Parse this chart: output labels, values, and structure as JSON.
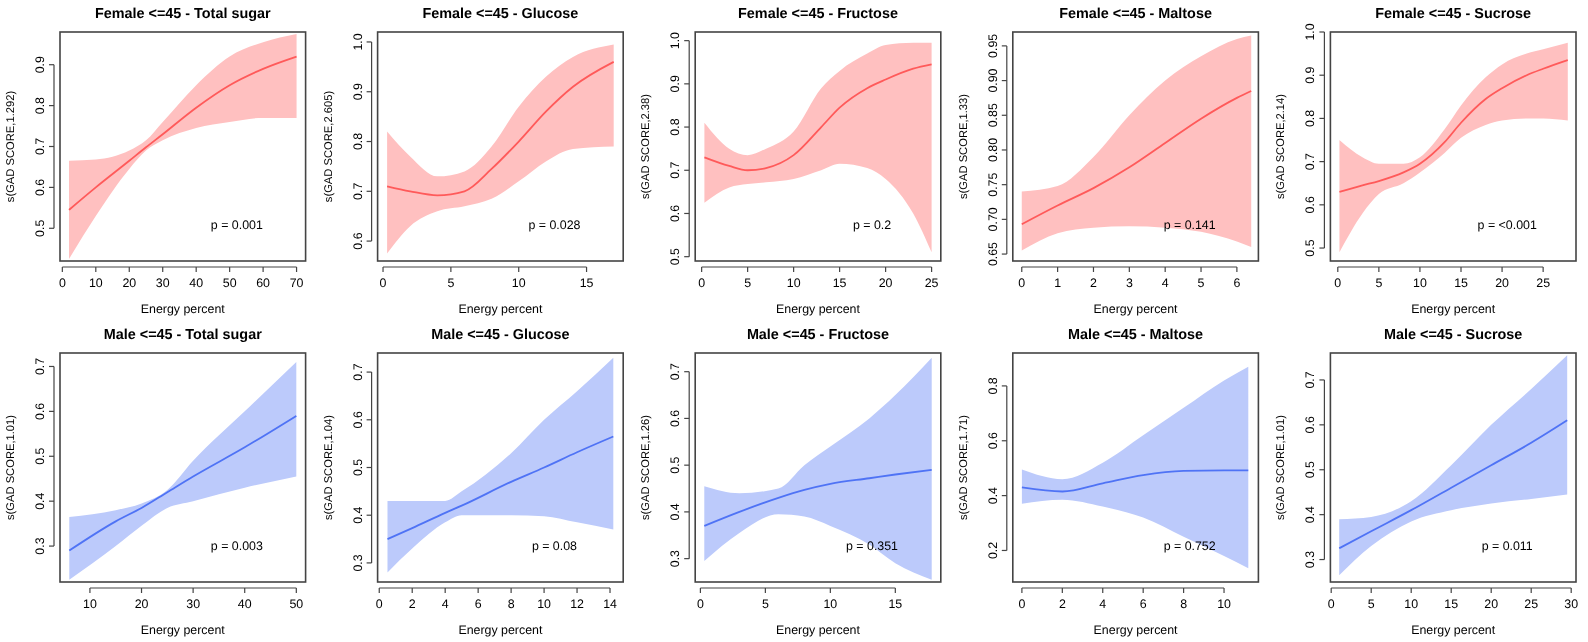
{
  "chart_data": [
    {
      "type": "line",
      "title": "Female <=45 - Total sugar",
      "xlabel": "Energy percent",
      "ylabel": "s(GAD SCORE,1.292)",
      "xlim": [
        -0.7,
        72.7
      ],
      "xticks": [
        0,
        10,
        20,
        30,
        40,
        50,
        60,
        70
      ],
      "ylim": [
        0.42,
        0.98
      ],
      "yticks": [
        0.5,
        0.6,
        0.7,
        0.8,
        0.9
      ],
      "annotations": [
        "p = 0.001"
      ],
      "series": [
        {
          "color": "#ff5a5a",
          "x": [
            2,
            10,
            20,
            25,
            30,
            40,
            50,
            60,
            70
          ],
          "values": [
            0.545,
            0.6,
            0.665,
            0.698,
            0.73,
            0.795,
            0.85,
            0.89,
            0.92
          ],
          "lower": [
            0.425,
            0.53,
            0.645,
            0.69,
            0.715,
            0.745,
            0.76,
            0.77,
            0.77
          ],
          "upper": [
            0.665,
            0.668,
            0.69,
            0.715,
            0.76,
            0.85,
            0.92,
            0.955,
            0.975
          ]
        }
      ]
    },
    {
      "type": "line",
      "title": "Female <=45 - Glucose",
      "xlabel": "Energy percent",
      "ylabel": "s(GAD SCORE,2.605)",
      "xlim": [
        -0.4,
        17.7
      ],
      "xticks": [
        0,
        5,
        10,
        15
      ],
      "ylim": [
        0.56,
        1.02
      ],
      "yticks": [
        0.6,
        0.7,
        0.8,
        0.9,
        {
          "value": 1,
          "label": "1.0"
        }
      ],
      "annotations": [
        "p = 0.028"
      ],
      "series": [
        {
          "color": "#ff5a5a",
          "x": [
            0.3,
            2,
            4,
            6,
            8,
            10,
            12,
            14,
            17
          ],
          "values": [
            0.71,
            0.7,
            0.692,
            0.7,
            0.745,
            0.8,
            0.86,
            0.91,
            0.96
          ],
          "lower": [
            0.575,
            0.63,
            0.66,
            0.67,
            0.685,
            0.72,
            0.76,
            0.785,
            0.79
          ],
          "upper": [
            0.82,
            0.77,
            0.73,
            0.74,
            0.79,
            0.87,
            0.93,
            0.97,
            0.995
          ]
        }
      ]
    },
    {
      "type": "line",
      "title": "Female <=45 - Fructose",
      "xlabel": "Energy percent",
      "ylabel": "s(GAD SCORE,2.38)",
      "xlim": [
        -0.7,
        26
      ],
      "xticks": [
        0,
        5,
        10,
        15,
        20,
        25
      ],
      "ylim": [
        0.49,
        1.02
      ],
      "yticks": [
        0.5,
        0.6,
        0.7,
        0.8,
        0.9,
        {
          "value": 1,
          "label": "1.0"
        }
      ],
      "annotations": [
        "p = 0.2"
      ],
      "series": [
        {
          "color": "#ff5a5a",
          "x": [
            0.3,
            3,
            5,
            7,
            10,
            13,
            15,
            18,
            20,
            23,
            25
          ],
          "values": [
            0.73,
            0.71,
            0.7,
            0.705,
            0.735,
            0.8,
            0.845,
            0.89,
            0.91,
            0.935,
            0.945
          ],
          "lower": [
            0.625,
            0.66,
            0.668,
            0.672,
            0.68,
            0.7,
            0.715,
            0.705,
            0.68,
            0.6,
            0.51
          ],
          "upper": [
            0.81,
            0.75,
            0.735,
            0.75,
            0.79,
            0.89,
            0.93,
            0.97,
            0.99,
            0.995,
            0.995
          ]
        }
      ]
    },
    {
      "type": "line",
      "title": "Female <=45 - Maltose",
      "xlabel": "Energy percent",
      "ylabel": "s(GAD SCORE,1.33)",
      "xlim": [
        -0.25,
        6.6
      ],
      "xticks": [
        0,
        1,
        2,
        3,
        4,
        5,
        6
      ],
      "ylim": [
        0.64,
        0.97
      ],
      "yticks": [
        {
          "value": 0.65,
          "label": "0.65"
        },
        {
          "value": 0.7,
          "label": "0.70"
        },
        {
          "value": 0.75,
          "label": "0.75"
        },
        {
          "value": 0.8,
          "label": "0.80"
        },
        {
          "value": 0.85,
          "label": "0.85"
        },
        {
          "value": 0.9,
          "label": "0.90"
        },
        {
          "value": 0.95,
          "label": "0.95"
        }
      ],
      "annotations": [
        "p = 0.141"
      ],
      "series": [
        {
          "color": "#ff5a5a",
          "x": [
            0,
            1,
            2,
            3,
            4,
            5,
            6,
            6.4
          ],
          "values": [
            0.693,
            0.72,
            0.745,
            0.775,
            0.81,
            0.845,
            0.875,
            0.885
          ],
          "lower": [
            0.655,
            0.68,
            0.688,
            0.69,
            0.688,
            0.682,
            0.668,
            0.66
          ],
          "upper": [
            0.74,
            0.748,
            0.79,
            0.85,
            0.9,
            0.935,
            0.96,
            0.965
          ]
        }
      ]
    },
    {
      "type": "line",
      "title": "Female <=45 - Sucrose",
      "xlabel": "Energy percent",
      "ylabel": "s(GAD SCORE,2.14)",
      "xlim": [
        -0.9,
        29
      ],
      "xticks": [
        0,
        5,
        10,
        15,
        20,
        25
      ],
      "ylim": [
        0.47,
        1.0
      ],
      "yticks": [
        0.5,
        0.6,
        0.7,
        0.8,
        0.9,
        {
          "value": 1,
          "label": "1.0"
        }
      ],
      "annotations": [
        "p = <0.001"
      ],
      "series": [
        {
          "color": "#ff5a5a",
          "x": [
            0.2,
            3,
            5,
            8,
            10,
            13,
            15,
            18,
            20,
            23,
            25,
            28
          ],
          "values": [
            0.63,
            0.645,
            0.655,
            0.675,
            0.695,
            0.745,
            0.79,
            0.845,
            0.87,
            0.9,
            0.915,
            0.935
          ],
          "lower": [
            0.49,
            0.58,
            0.625,
            0.65,
            0.675,
            0.72,
            0.755,
            0.785,
            0.795,
            0.8,
            0.8,
            0.795
          ],
          "upper": [
            0.75,
            0.71,
            0.695,
            0.695,
            0.71,
            0.775,
            0.83,
            0.895,
            0.925,
            0.95,
            0.96,
            0.975
          ]
        }
      ]
    },
    {
      "type": "line",
      "title": "Male <=45 - Total sugar",
      "xlabel": "Energy percent",
      "ylabel": "s(GAD SCORE,1.01)",
      "xlim": [
        4.2,
        51.8
      ],
      "xticks": [
        10,
        20,
        30,
        40,
        50
      ],
      "ylim": [
        0.22,
        0.73
      ],
      "yticks": [
        0.3,
        0.4,
        0.5,
        0.6,
        0.7
      ],
      "annotations": [
        "p = 0.003"
      ],
      "series": [
        {
          "color": "#4f73f5",
          "x": [
            6,
            15,
            20,
            25,
            30,
            40,
            50
          ],
          "values": [
            0.29,
            0.355,
            0.385,
            0.42,
            0.455,
            0.52,
            0.59
          ],
          "lower": [
            0.225,
            0.3,
            0.345,
            0.385,
            0.4,
            0.43,
            0.455
          ],
          "upper": [
            0.365,
            0.38,
            0.395,
            0.425,
            0.49,
            0.6,
            0.71
          ]
        }
      ]
    },
    {
      "type": "line",
      "title": "Male <=45 - Glucose",
      "xlabel": "Energy percent",
      "ylabel": "s(GAD SCORE,1.04)",
      "xlim": [
        -0.1,
        14.8
      ],
      "xticks": [
        0,
        2,
        4,
        6,
        8,
        10,
        12,
        14
      ],
      "ylim": [
        0.26,
        0.74
      ],
      "yticks": [
        0.3,
        0.4,
        0.5,
        0.6,
        0.7
      ],
      "annotations": [
        "p = 0.08"
      ],
      "series": [
        {
          "color": "#4f73f5",
          "x": [
            0.5,
            2,
            4,
            5,
            8,
            10,
            12,
            14.2
          ],
          "values": [
            0.35,
            0.373,
            0.405,
            0.42,
            0.47,
            0.5,
            0.532,
            0.565
          ],
          "lower": [
            0.28,
            0.33,
            0.385,
            0.4,
            0.4,
            0.398,
            0.385,
            0.37
          ],
          "upper": [
            0.43,
            0.43,
            0.43,
            0.45,
            0.53,
            0.6,
            0.66,
            0.73
          ]
        }
      ]
    },
    {
      "type": "line",
      "title": "Male <=45 - Fructose",
      "xlabel": "Energy percent",
      "ylabel": "s(GAD SCORE,1.26)",
      "xlim": [
        -0.4,
        18.5
      ],
      "xticks": [
        0,
        5,
        10,
        15
      ],
      "ylim": [
        0.25,
        0.74
      ],
      "yticks": [
        0.3,
        0.4,
        0.5,
        0.6,
        0.7
      ],
      "annotations": [
        "p = 0.351"
      ],
      "series": [
        {
          "color": "#4f73f5",
          "x": [
            0.3,
            3,
            6,
            8,
            10,
            13,
            15,
            17.8
          ],
          "values": [
            0.37,
            0.4,
            0.43,
            0.447,
            0.46,
            0.472,
            0.48,
            0.49
          ],
          "lower": [
            0.295,
            0.355,
            0.395,
            0.39,
            0.37,
            0.33,
            0.29,
            0.255
          ],
          "upper": [
            0.455,
            0.44,
            0.45,
            0.5,
            0.54,
            0.6,
            0.65,
            0.73
          ]
        }
      ]
    },
    {
      "type": "line",
      "title": "Male <=45 - Maltose",
      "xlabel": "Energy percent",
      "ylabel": "s(GAD SCORE,1.71)",
      "xlim": [
        -0.45,
        11.7
      ],
      "xticks": [
        0,
        2,
        4,
        6,
        8,
        10
      ],
      "ylim": [
        0.085,
        0.92
      ],
      "yticks": [
        0.2,
        0.4,
        0.6,
        0.8
      ],
      "annotations": [
        "p = 0.752"
      ],
      "series": [
        {
          "color": "#4f73f5",
          "x": [
            0,
            2,
            4,
            6,
            8,
            10,
            11.2
          ],
          "values": [
            0.43,
            0.415,
            0.445,
            0.475,
            0.49,
            0.492,
            0.492
          ],
          "lower": [
            0.37,
            0.385,
            0.36,
            0.32,
            0.25,
            0.18,
            0.135
          ],
          "upper": [
            0.495,
            0.46,
            0.52,
            0.62,
            0.72,
            0.82,
            0.87
          ]
        }
      ]
    },
    {
      "type": "line",
      "title": "Male <=45 - Sucrose",
      "xlabel": "Energy percent",
      "ylabel": "s(GAD SCORE,1.01)",
      "xlim": [
        -0.1,
        30.6
      ],
      "xticks": [
        0,
        5,
        10,
        15,
        20,
        25,
        30
      ],
      "ylim": [
        0.25,
        0.76
      ],
      "yticks": [
        0.3,
        0.4,
        0.5,
        0.6,
        0.7
      ],
      "annotations": [
        "p = 0.011"
      ],
      "series": [
        {
          "color": "#4f73f5",
          "x": [
            1,
            5,
            10,
            15,
            20,
            25,
            29.5
          ],
          "values": [
            0.325,
            0.363,
            0.41,
            0.46,
            0.51,
            0.56,
            0.61
          ],
          "lower": [
            0.265,
            0.33,
            0.385,
            0.41,
            0.425,
            0.435,
            0.445
          ],
          "upper": [
            0.39,
            0.395,
            0.43,
            0.51,
            0.6,
            0.68,
            0.755
          ]
        }
      ]
    }
  ]
}
